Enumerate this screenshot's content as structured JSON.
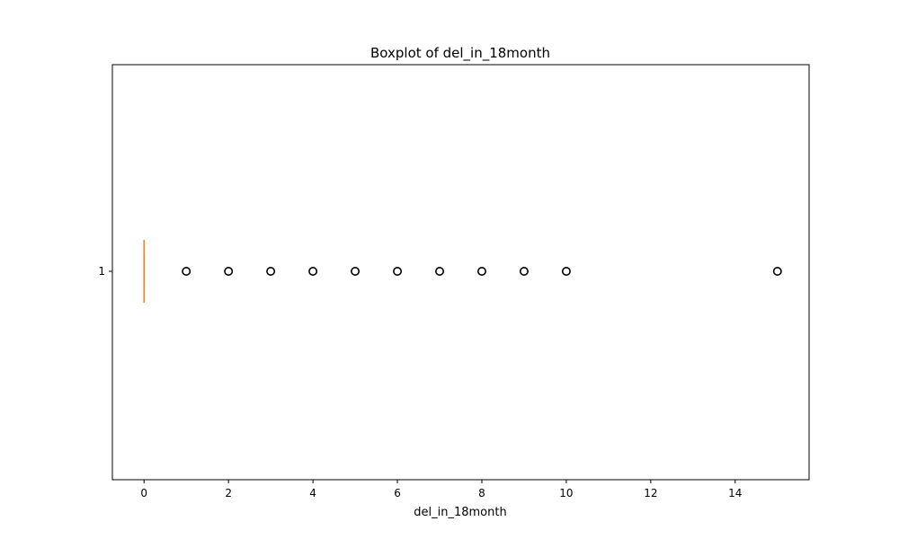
{
  "chart_data": {
    "type": "boxplot",
    "orientation": "horizontal",
    "title": "Boxplot of del_in_18month",
    "xlabel": "del_in_18month",
    "ylabel": "",
    "xlim": [
      -0.75,
      15.75
    ],
    "x_ticks": [
      0,
      2,
      4,
      6,
      8,
      10,
      12,
      14
    ],
    "y_tick_label": "1",
    "grid": false,
    "box": {
      "min": 0,
      "q1": 0,
      "median": 0,
      "q3": 0,
      "max": 0
    },
    "outliers": [
      1,
      2,
      3,
      4,
      5,
      6,
      7,
      8,
      9,
      10,
      15
    ],
    "colors": {
      "median": "#ff7f0e",
      "box": "#000000",
      "outlier_edge": "#000000"
    }
  }
}
